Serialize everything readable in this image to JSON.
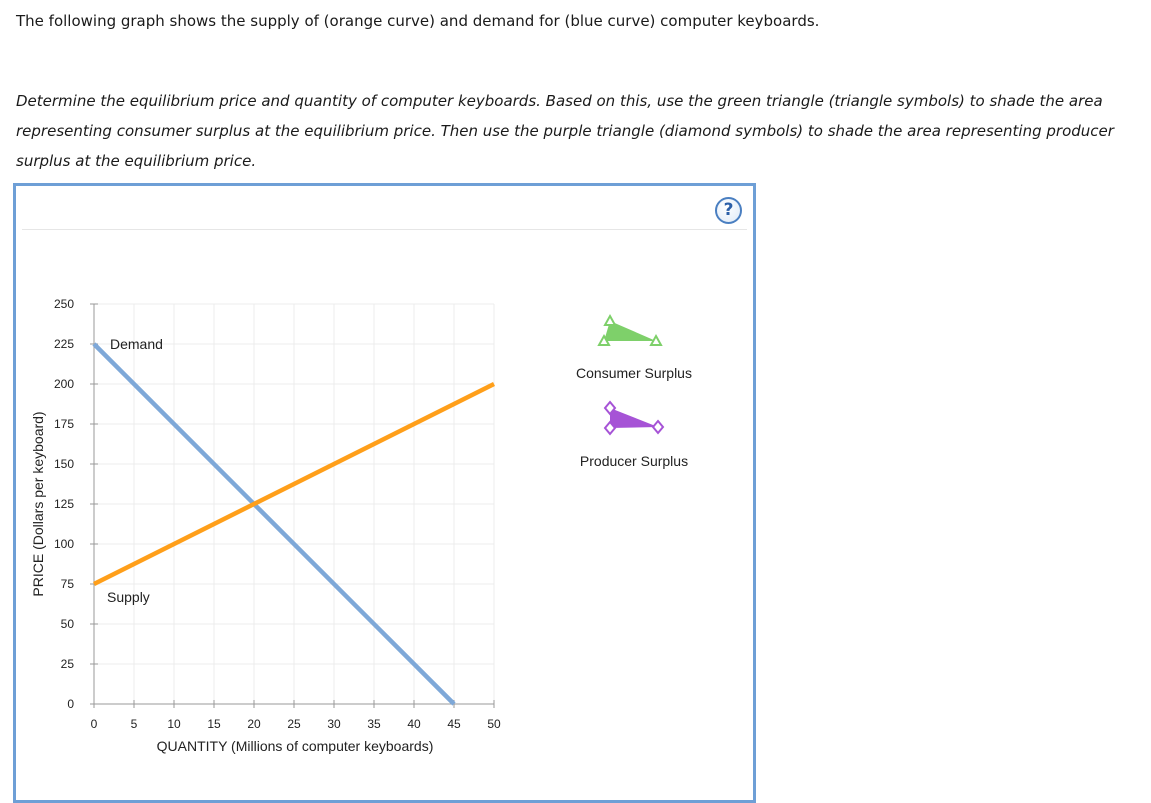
{
  "intro": "The following graph shows the supply of (orange curve) and demand for (blue curve) computer keyboards.",
  "instructions": "Determine the equilibrium price and quantity of computer keyboards. Based on this, use the green triangle (triangle symbols) to shade the area representing consumer surplus at the equilibrium price. Then use the purple triangle (diamond symbols) to shade the area representing producer surplus at the equilibrium price.",
  "help": {
    "label": "?"
  },
  "legend": {
    "consumer_surplus": {
      "label": "Consumer Surplus",
      "color": "#7ed06a",
      "icon": "triangle-symbol-icon"
    },
    "producer_surplus": {
      "label": "Producer Surplus",
      "color": "#a653d6",
      "icon": "diamond-symbol-icon"
    }
  },
  "chart_data": {
    "type": "line",
    "xlabel": "QUANTITY (Millions of computer keyboards)",
    "ylabel": "PRICE (Dollars per keyboard)",
    "xlim": [
      0,
      50
    ],
    "ylim": [
      0,
      250
    ],
    "xticks": [
      0,
      5,
      10,
      15,
      20,
      25,
      30,
      35,
      40,
      45,
      50
    ],
    "yticks": [
      0,
      25,
      50,
      75,
      100,
      125,
      150,
      175,
      200,
      225,
      250
    ],
    "grid": true,
    "series": [
      {
        "name": "Demand",
        "color": "#7ea8d8",
        "x": [
          0,
          45
        ],
        "y": [
          225,
          0
        ]
      },
      {
        "name": "Supply",
        "color": "#ff9f1a",
        "x": [
          0,
          50
        ],
        "y": [
          75,
          200
        ]
      }
    ]
  }
}
